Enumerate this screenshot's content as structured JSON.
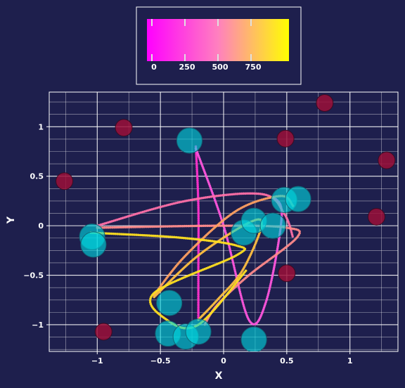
{
  "chart_data": {
    "type": "scatter",
    "title": "",
    "xlabel": "X",
    "ylabel": "Y",
    "xlim": [
      -1.38,
      1.38
    ],
    "ylim": [
      -1.27,
      1.35
    ],
    "xticks": [
      -1,
      -0.5,
      0,
      0.5,
      1
    ],
    "xtick_labels": [
      "−1",
      "−0.5",
      "0",
      "0.5",
      "1"
    ],
    "yticks": [
      -1,
      -0.5,
      0,
      0.5,
      1
    ],
    "ytick_labels": [
      "−1",
      "−0.5",
      "0",
      "0.5",
      "1"
    ],
    "grid": true,
    "colorbar": {
      "placement": "top-center",
      "orientation": "horizontal",
      "range": [
        0,
        1000
      ],
      "ticks": [
        0,
        250,
        500,
        750
      ],
      "tick_labels": [
        "0",
        "250",
        "500",
        "750"
      ],
      "colormap": [
        "#ff00ff",
        "#ff80bf",
        "#ffff00"
      ]
    },
    "series": [
      {
        "marker": "circle-large",
        "color": "#00d8e0",
        "points": [
          [
            -1.04,
            -0.11
          ],
          [
            -1.03,
            -0.19
          ],
          [
            -0.27,
            0.86
          ],
          [
            0.48,
            0.26
          ],
          [
            0.59,
            0.27
          ],
          [
            0.16,
            -0.07
          ],
          [
            0.24,
            0.05
          ],
          [
            0.39,
            0.0
          ],
          [
            -0.43,
            -0.78
          ],
          [
            -0.44,
            -1.09
          ],
          [
            -0.3,
            -1.12
          ],
          [
            -0.2,
            -1.07
          ],
          [
            0.24,
            -1.15
          ]
        ]
      },
      {
        "marker": "circle-small",
        "color": "#9b0f38",
        "points": [
          [
            -1.26,
            0.45
          ],
          [
            -0.79,
            0.99
          ],
          [
            0.8,
            1.24
          ],
          [
            0.49,
            0.88
          ],
          [
            1.29,
            0.66
          ],
          [
            1.21,
            0.09
          ],
          [
            0.5,
            -0.48
          ],
          [
            -0.95,
            -1.07
          ]
        ]
      }
    ],
    "trajectories": [
      {
        "color": "#ff33cc",
        "points": [
          [
            -0.22,
            0.8
          ],
          [
            -0.2,
            0.2
          ],
          [
            -0.2,
            -0.5
          ],
          [
            -0.2,
            -0.95
          ]
        ]
      },
      {
        "color": "#ff55dd",
        "points": [
          [
            -0.22,
            0.78
          ],
          [
            0.0,
            0.0
          ],
          [
            0.2,
            -0.95
          ],
          [
            0.34,
            -0.75
          ],
          [
            0.46,
            0.1
          ],
          [
            0.38,
            0.3
          ]
        ]
      },
      {
        "color": "#ff70a8",
        "points": [
          [
            -1.0,
            0.0
          ],
          [
            -0.3,
            0.25
          ],
          [
            0.3,
            0.32
          ],
          [
            0.48,
            0.12
          ],
          [
            0.55,
            -0.12
          ]
        ]
      },
      {
        "color": "#ff8a8a",
        "points": [
          [
            -1.0,
            -0.02
          ],
          [
            0.0,
            0.0
          ],
          [
            0.5,
            -0.02
          ],
          [
            0.58,
            -0.12
          ],
          [
            0.2,
            -0.5
          ],
          [
            -0.05,
            -0.8
          ],
          [
            -0.15,
            -1.0
          ]
        ]
      },
      {
        "color": "#ffa060",
        "points": [
          [
            -0.55,
            -0.7
          ],
          [
            -0.3,
            -0.3
          ],
          [
            0.1,
            0.15
          ],
          [
            0.45,
            0.3
          ],
          [
            0.55,
            0.2
          ]
        ]
      },
      {
        "color": "#ffc040",
        "points": [
          [
            -0.55,
            -0.72
          ],
          [
            -0.2,
            -0.3
          ],
          [
            0.2,
            0.03
          ],
          [
            0.3,
            0.0
          ],
          [
            0.15,
            -0.45
          ],
          [
            -0.05,
            -0.75
          ],
          [
            -0.2,
            -0.95
          ]
        ]
      },
      {
        "color": "#ffe020",
        "points": [
          [
            -1.05,
            -0.07
          ],
          [
            -0.35,
            -0.12
          ],
          [
            0.1,
            -0.2
          ],
          [
            0.1,
            -0.3
          ],
          [
            -0.55,
            -0.68
          ],
          [
            -0.45,
            -0.95
          ],
          [
            -0.2,
            -1.0
          ],
          [
            0.18,
            -0.45
          ]
        ]
      }
    ]
  }
}
